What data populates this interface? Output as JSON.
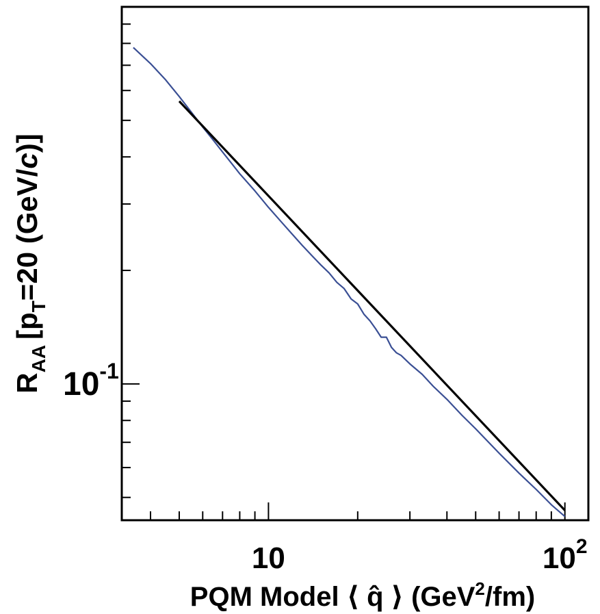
{
  "chart_data": {
    "type": "line",
    "xscale": "log",
    "yscale": "log",
    "xlim": [
      3.2,
      120
    ],
    "ylim": [
      0.0435,
      1.0
    ],
    "grid": false,
    "legend": "none",
    "xlabel": {
      "prefix": "PQM Model",
      "open_bracket": "⟨",
      "symbol": "q̂",
      "close_bracket": "⟩",
      "unit_open": "(GeV",
      "unit_sup": "2",
      "unit_close": "/fm)"
    },
    "ylabel": {
      "base": "R",
      "base_sub": "AA",
      "bracket_open": "[p",
      "p_sub": "T",
      "value": "=20 (GeV/",
      "c_italic": "c",
      "close": ")]"
    },
    "x_tick_labels": [
      {
        "value": 10,
        "base": "10",
        "exp": ""
      },
      {
        "value": 100,
        "base": "10",
        "exp": "2"
      }
    ],
    "y_tick_labels": [
      {
        "value": 0.1,
        "base": "10",
        "exp": "-1"
      }
    ],
    "series": [
      {
        "color": "#3a4f94",
        "x": [
          3.5,
          4.0,
          4.5,
          5.0,
          5.5,
          6.0,
          6.5,
          7.0,
          7.5,
          8.0,
          9.0,
          10.0,
          11.0,
          12.0,
          13.0,
          14.0,
          15.0,
          16.0,
          17.0,
          18.0,
          19.0,
          20.0,
          21.0,
          22.0,
          23.0,
          24.0,
          25.0,
          26.0,
          27.0,
          28.0,
          30.0,
          33.0,
          36.0,
          40.0,
          45.0,
          50.0,
          60.0,
          70.0,
          80.0,
          90.0,
          100.0
        ],
        "y": [
          0.78,
          0.707,
          0.64,
          0.578,
          0.525,
          0.48,
          0.444,
          0.412,
          0.385,
          0.361,
          0.325,
          0.294,
          0.27,
          0.25,
          0.233,
          0.219,
          0.207,
          0.197,
          0.186,
          0.179,
          0.168,
          0.163,
          0.153,
          0.147,
          0.14,
          0.133,
          0.133,
          0.125,
          0.121,
          0.119,
          0.113,
          0.106,
          0.0985,
          0.091,
          0.0825,
          0.076,
          0.0655,
          0.058,
          0.0525,
          0.0478,
          0.0445
        ]
      },
      {
        "color": "#000000",
        "x": [
          5.0,
          100.0
        ],
        "y": [
          0.562,
          0.0462
        ]
      }
    ]
  }
}
